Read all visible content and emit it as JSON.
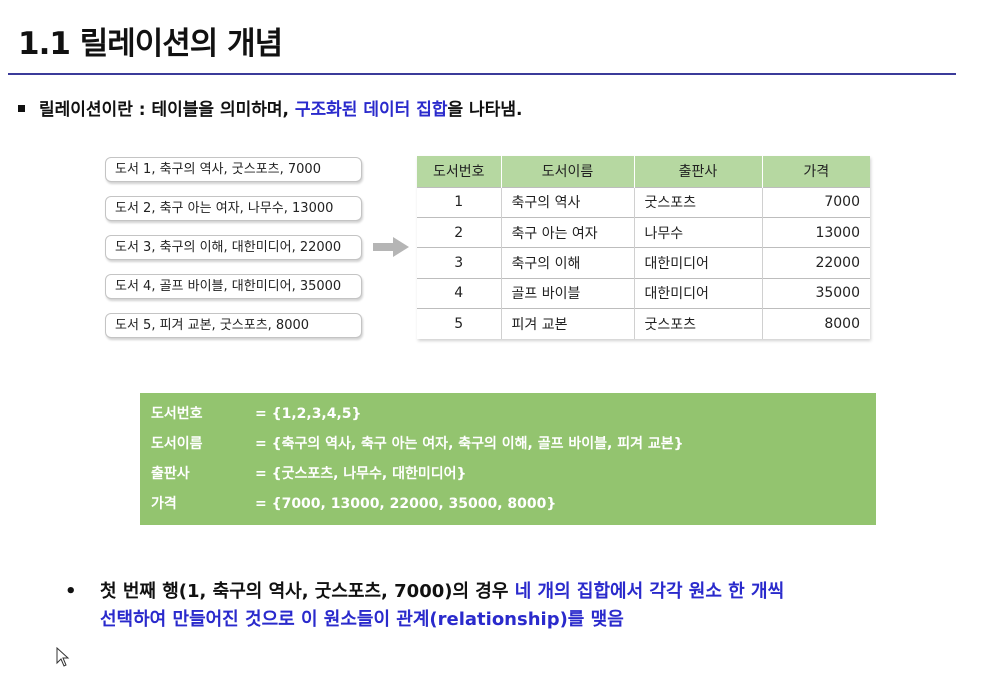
{
  "header": {
    "title": "1.1 릴레이션의 개념"
  },
  "bullet1": {
    "text_a": "릴레이션이란 : 테이블을 의미하며, ",
    "text_highlight": "구조화된 데이터 집합",
    "text_b": "을 나타냄."
  },
  "records": [
    "도서 1, 축구의 역사, 굿스포츠, 7000",
    "도서 2, 축구 아는 여자, 나무수, 13000",
    "도서 3, 축구의 이해, 대한미디어, 22000",
    "도서 4, 골프 바이블, 대한미디어, 35000",
    "도서 5, 피겨 교본, 굿스포츠, 8000"
  ],
  "table": {
    "headers": [
      "도서번호",
      "도서이름",
      "출판사",
      "가격"
    ],
    "rows": [
      [
        "1",
        "축구의 역사",
        "굿스포츠",
        "7000"
      ],
      [
        "2",
        "축구 아는 여자",
        "나무수",
        "13000"
      ],
      [
        "3",
        "축구의 이해",
        "대한미디어",
        "22000"
      ],
      [
        "4",
        "골프 바이블",
        "대한미디어",
        "35000"
      ],
      [
        "5",
        "피겨 교본",
        "굿스포츠",
        "8000"
      ]
    ]
  },
  "domains": [
    {
      "name": "도서번호",
      "value": "= {1,2,3,4,5}"
    },
    {
      "name": "도서이름",
      "value": "= {축구의 역사, 축구 아는 여자, 축구의 이해, 골프 바이블, 피겨 교본}"
    },
    {
      "name": "출판사",
      "value": "= {굿스포츠, 나무수, 대한미디어}"
    },
    {
      "name": "가격",
      "value": "= {7000, 13000, 22000, 35000, 8000}"
    }
  ],
  "bullet2": {
    "marker": "•",
    "line1_a": "첫 번째 행(1, 축구의 역사, 굿스포츠, 7000)의 경우 ",
    "line1_highlight": "네 개의 집합에서 각각 원소 한 개씩",
    "line2_highlight": "선택하여 만들어진 것으로 이 원소들이 관계(relationship)를 맺음"
  },
  "colors": {
    "accent_blue": "#2a2acc",
    "title_rule": "#3b3b9a",
    "table_header": "#b6d8a1",
    "domain_box": "#93c46f"
  }
}
